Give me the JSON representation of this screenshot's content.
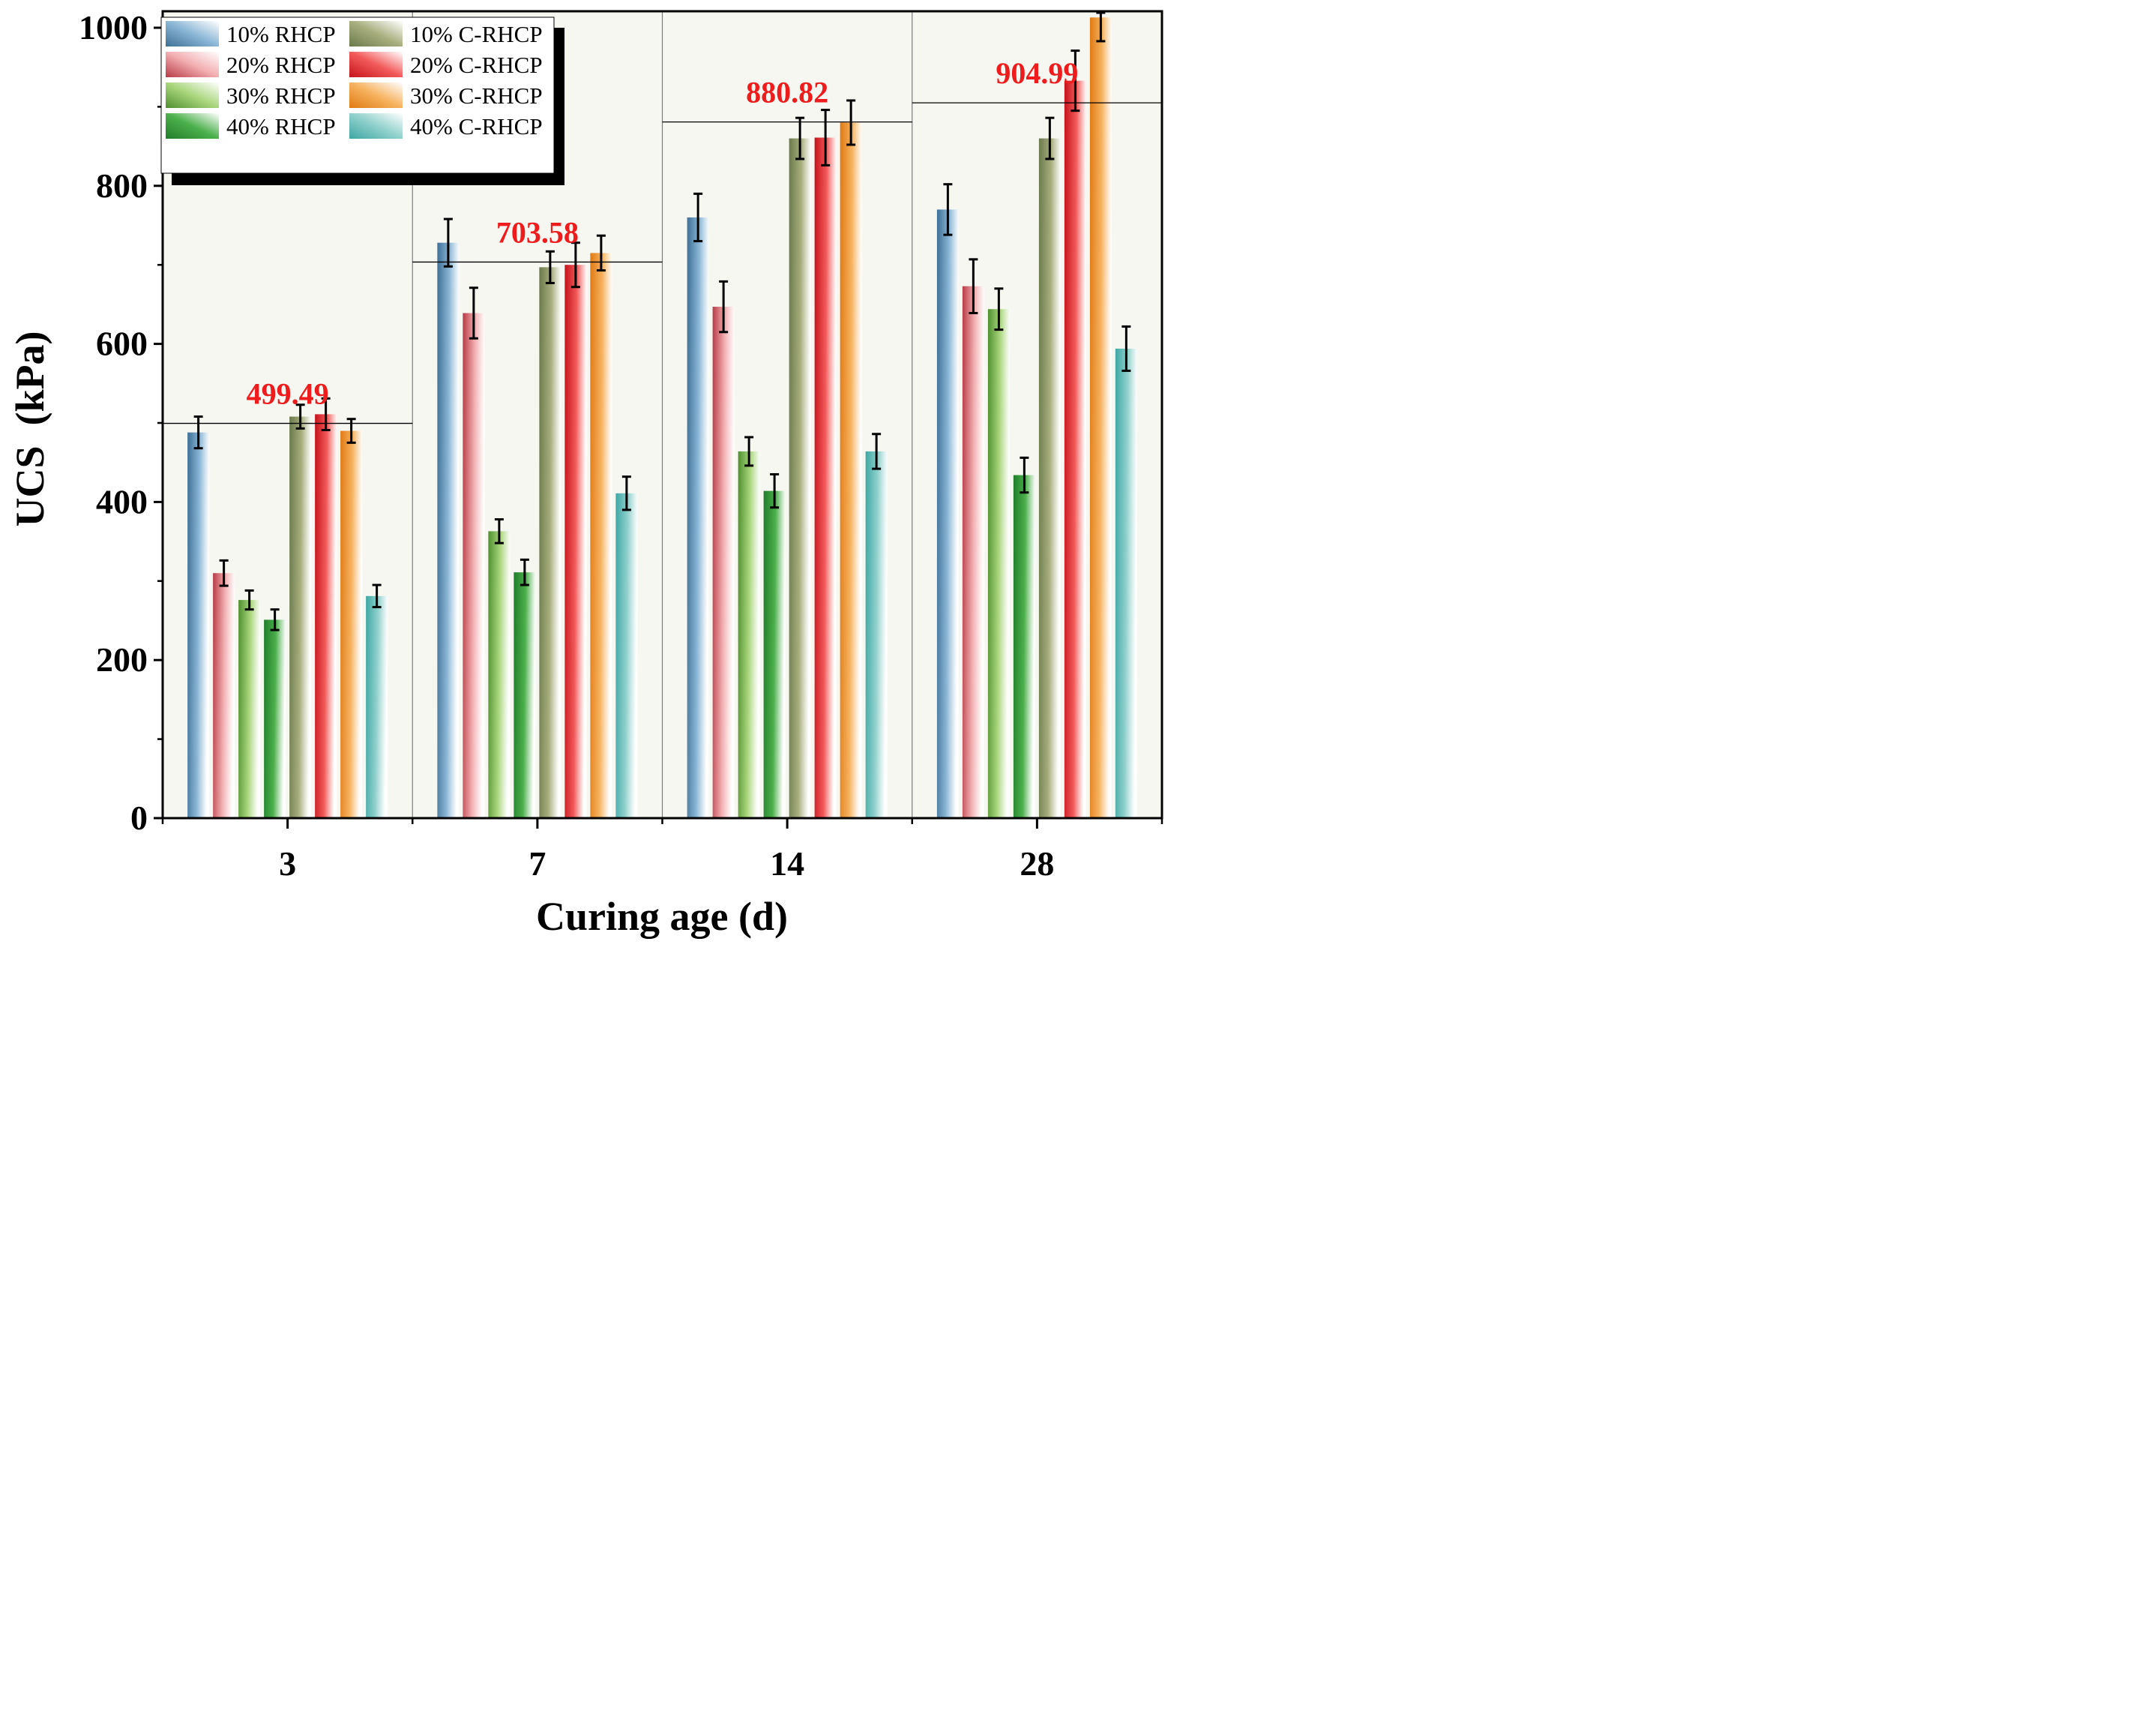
{
  "chart_data": {
    "type": "bar",
    "xlabel": "Curing age (d)",
    "ylabel": "UCS  (kPa)",
    "ylim": [
      0,
      1020
    ],
    "yticks": [
      0,
      200,
      400,
      600,
      800,
      1000
    ],
    "categories": [
      "3",
      "7",
      "14",
      "28"
    ],
    "series": [
      {
        "name": "10% RHCP",
        "color": "#8ab6d6",
        "dark": "#3e6f95",
        "values": [
          488,
          728,
          760,
          770
        ],
        "errors": [
          20,
          30,
          30,
          32
        ]
      },
      {
        "name": "20% RHCP",
        "color": "#f2aeb1",
        "dark": "#b73a46",
        "values": [
          310,
          639,
          647,
          673
        ],
        "errors": [
          16,
          32,
          32,
          34
        ]
      },
      {
        "name": "30% RHCP",
        "color": "#a9d67c",
        "dark": "#4f8f2f",
        "values": [
          276,
          363,
          464,
          644
        ],
        "errors": [
          12,
          15,
          18,
          26
        ]
      },
      {
        "name": "40% RHCP",
        "color": "#4cb04c",
        "dark": "#1f7d2a",
        "values": [
          251,
          311,
          414,
          434
        ],
        "errors": [
          13,
          16,
          21,
          22
        ]
      },
      {
        "name": "10% C-RHCP",
        "color": "#a7ad7c",
        "dark": "#6b7a4c",
        "values": [
          508,
          697,
          860,
          860
        ],
        "errors": [
          15,
          20,
          26,
          26
        ]
      },
      {
        "name": "20% C-RHCP",
        "color": "#f25a5a",
        "dark": "#c4121b",
        "values": [
          511,
          700,
          861,
          933
        ],
        "errors": [
          20,
          28,
          35,
          38
        ]
      },
      {
        "name": "30% C-RHCP",
        "color": "#f6b25e",
        "dark": "#e07a14",
        "values": [
          490,
          715,
          880,
          1013
        ],
        "errors": [
          15,
          22,
          28,
          30
        ]
      },
      {
        "name": "40% C-RHCP",
        "color": "#8fd0cc",
        "dark": "#3ea7a3",
        "values": [
          281,
          411,
          464,
          594
        ],
        "errors": [
          14,
          21,
          22,
          28
        ]
      }
    ],
    "reference_lines": [
      {
        "category": "3",
        "value": 499.49,
        "label": "499.49"
      },
      {
        "category": "7",
        "value": 703.58,
        "label": "703.58"
      },
      {
        "category": "14",
        "value": 880.82,
        "label": "880.82"
      },
      {
        "category": "28",
        "value": 904.99,
        "label": "904.99"
      }
    ],
    "annotation_color": "#ee1c1c",
    "legend": {
      "position": "top-left",
      "columns": 2
    }
  }
}
